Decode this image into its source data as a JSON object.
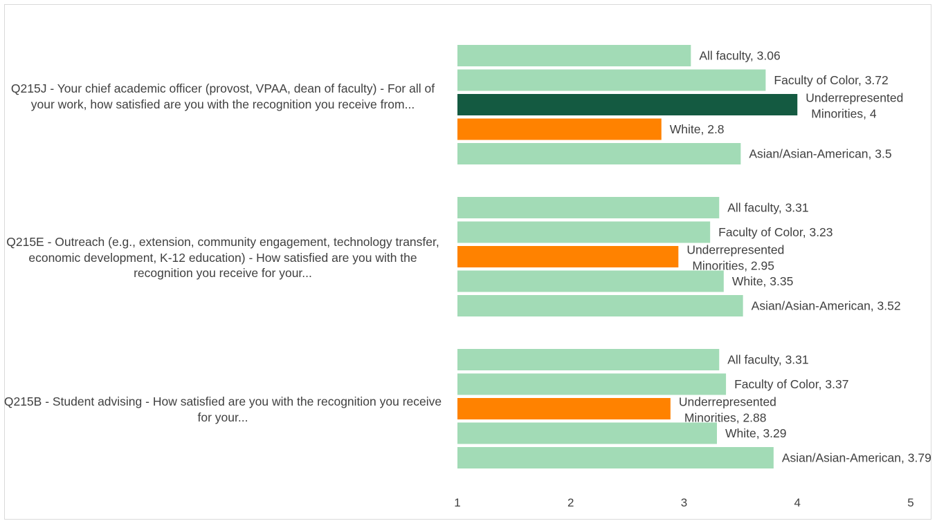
{
  "colors": {
    "bar_default": "#a2dbb6",
    "bar_max": "#145a41",
    "bar_min": "#ff8200",
    "text": "#404040",
    "border": "#d9d9d9"
  },
  "chart_data": {
    "type": "bar",
    "orientation": "horizontal",
    "title": "",
    "xlabel": "",
    "ylabel": "",
    "xlim": [
      1,
      5
    ],
    "x_ticks": [
      "1",
      "2",
      "3",
      "4",
      "5"
    ],
    "grid": false,
    "legend": "none",
    "groups": [
      {
        "question": "Q215J - Your chief academic officer (provost, VPAA, dean of faculty) - For all of your work, how satisfied are you with the recognition you receive from...",
        "bars": [
          {
            "category": "All faculty",
            "value": 3.06,
            "label": "All faculty, 3.06",
            "color": "#a2dbb6"
          },
          {
            "category": "Faculty of Color",
            "value": 3.72,
            "label": "Faculty of Color, 3.72",
            "color": "#a2dbb6"
          },
          {
            "category": "Underrepresented Minorities",
            "value": 4,
            "label": "Underrepresented Minorities, 4",
            "color": "#145a41"
          },
          {
            "category": "White",
            "value": 2.8,
            "label": "White, 2.8",
            "color": "#ff8200"
          },
          {
            "category": "Asian/Asian-American",
            "value": 3.5,
            "label": "Asian/Asian-American, 3.5",
            "color": "#a2dbb6"
          }
        ]
      },
      {
        "question": "Q215E - Outreach (e.g., extension, community engagement, technology transfer, economic development, K-12 education) - How satisfied are you with the recognition you receive for your...",
        "bars": [
          {
            "category": "All faculty",
            "value": 3.31,
            "label": "All faculty, 3.31",
            "color": "#a2dbb6"
          },
          {
            "category": "Faculty of Color",
            "value": 3.23,
            "label": "Faculty of Color, 3.23",
            "color": "#a2dbb6"
          },
          {
            "category": "Underrepresented Minorities",
            "value": 2.95,
            "label": "Underrepresented Minorities, 2.95",
            "color": "#ff8200"
          },
          {
            "category": "White",
            "value": 3.35,
            "label": "White, 3.35",
            "color": "#a2dbb6"
          },
          {
            "category": "Asian/Asian-American",
            "value": 3.52,
            "label": "Asian/Asian-American, 3.52",
            "color": "#a2dbb6"
          }
        ]
      },
      {
        "question": "Q215B - Student advising - How satisfied are you with the recognition you receive for your...",
        "bars": [
          {
            "category": "All faculty",
            "value": 3.31,
            "label": "All faculty, 3.31",
            "color": "#a2dbb6"
          },
          {
            "category": "Faculty of Color",
            "value": 3.37,
            "label": "Faculty of Color, 3.37",
            "color": "#a2dbb6"
          },
          {
            "category": "Underrepresented Minorities",
            "value": 2.88,
            "label": "Underrepresented Minorities, 2.88",
            "color": "#ff8200"
          },
          {
            "category": "White",
            "value": 3.29,
            "label": "White, 3.29",
            "color": "#a2dbb6"
          },
          {
            "category": "Asian/Asian-American",
            "value": 3.79,
            "label": "Asian/Asian-American, 3.79",
            "color": "#a2dbb6"
          }
        ]
      }
    ]
  }
}
